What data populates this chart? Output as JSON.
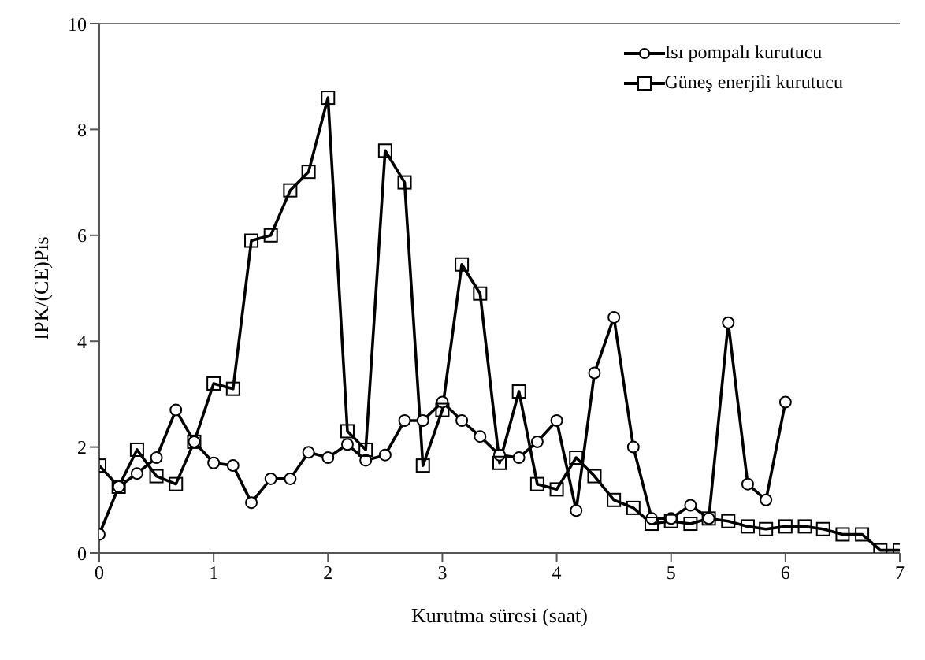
{
  "chart_data": {
    "type": "line",
    "xlabel": "Kurutma süresi (saat)",
    "ylabel": "IPK/(CE)Pis",
    "xlim": [
      0,
      7
    ],
    "xticks": [
      0,
      1,
      2,
      3,
      4,
      5,
      6,
      7
    ],
    "ylim": [
      0,
      10
    ],
    "yticks": [
      0,
      2,
      4,
      6,
      8,
      10
    ],
    "legend": "top right",
    "line_style": "solid",
    "series": [
      {
        "name": "Isı pompalı kurutucu",
        "color": "#000000",
        "marker": "circle",
        "x": [
          0,
          0.17,
          0.33,
          0.5,
          0.67,
          0.83,
          1,
          1.17,
          1.33,
          1.5,
          1.67,
          1.83,
          2,
          2.17,
          2.33,
          2.5,
          2.67,
          2.83,
          3,
          3.17,
          3.33,
          3.5,
          3.67,
          3.83,
          4,
          4.17,
          4.33,
          4.5,
          4.67,
          4.83,
          5,
          5.17,
          5.33,
          5.5,
          5.67,
          5.83,
          6
        ],
        "values": [
          0.35,
          1.25,
          1.5,
          1.8,
          2.7,
          2.1,
          1.7,
          1.65,
          0.95,
          1.4,
          1.4,
          1.9,
          1.8,
          2.05,
          1.75,
          1.85,
          2.5,
          2.5,
          2.85,
          2.5,
          2.2,
          1.85,
          1.8,
          2.1,
          2.5,
          0.8,
          3.4,
          4.45,
          2,
          0.65,
          0.65,
          0.9,
          0.65,
          4.35,
          1.3,
          1,
          2.85
        ]
      },
      {
        "name": "Güneş enerjili kurutucu",
        "color": "#000000",
        "marker": "square",
        "x": [
          0,
          0.17,
          0.33,
          0.5,
          0.67,
          0.83,
          1,
          1.17,
          1.33,
          1.5,
          1.67,
          1.83,
          2,
          2.17,
          2.33,
          2.5,
          2.67,
          2.83,
          3,
          3.17,
          3.33,
          3.5,
          3.67,
          3.83,
          4,
          4.17,
          4.33,
          4.5,
          4.67,
          4.83,
          5,
          5.17,
          5.33,
          5.5,
          5.67,
          5.83,
          6,
          6.17,
          6.33,
          6.5,
          6.67,
          6.83,
          7
        ],
        "values": [
          1.65,
          1.25,
          1.95,
          1.45,
          1.3,
          2.1,
          3.2,
          3.1,
          5.9,
          6,
          6.85,
          7.2,
          8.6,
          2.3,
          1.95,
          7.6,
          7,
          1.65,
          2.7,
          5.45,
          4.9,
          1.7,
          3.05,
          1.3,
          1.2,
          1.8,
          1.45,
          1,
          0.85,
          0.55,
          0.6,
          0.55,
          0.65,
          0.6,
          0.5,
          0.45,
          0.5,
          0.5,
          0.45,
          0.35,
          0.35,
          0.05,
          0.05
        ]
      }
    ]
  }
}
